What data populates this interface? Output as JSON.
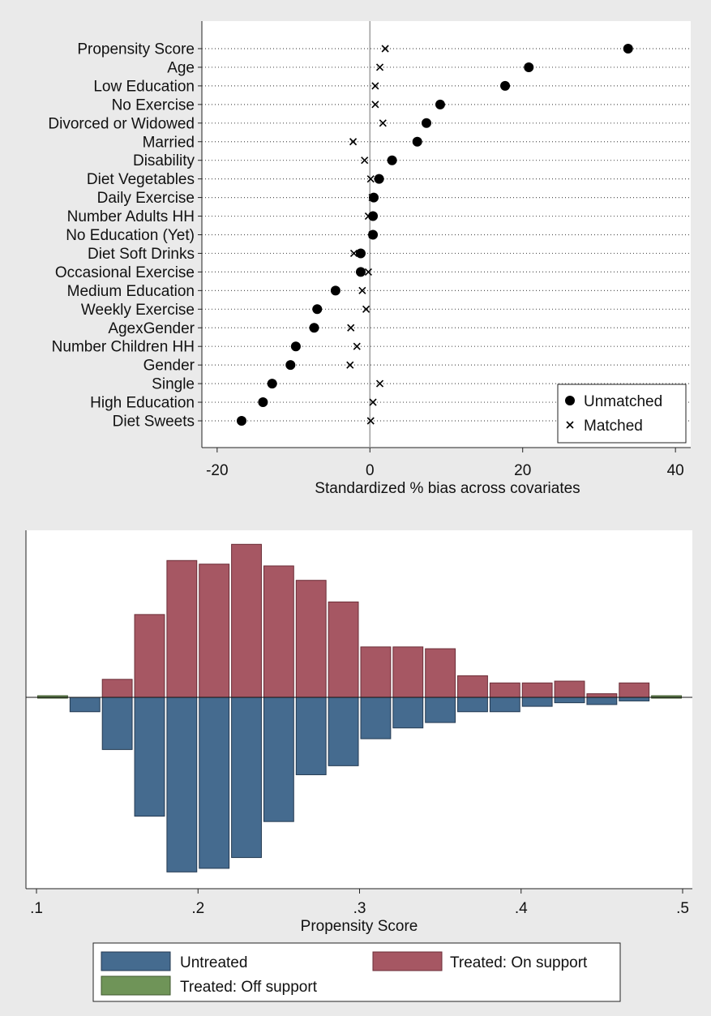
{
  "chart_data": [
    {
      "type": "scatter",
      "xlabel": "Standardized % bias across covariates",
      "ylabel": "",
      "xlim": [
        -22,
        42
      ],
      "xticks": [
        -20,
        0,
        20,
        40
      ],
      "grid": "dotted horizontal lines per covariate",
      "reference_line_x": 0,
      "legend_position": "bottom-right",
      "categories": [
        "Propensity Score",
        "Age",
        "Low Education",
        "No Exercise",
        "Divorced or Widowed",
        "Married",
        "Disability",
        "Diet Vegetables",
        "Daily Exercise",
        "Number Adults HH",
        "No Education (Yet)",
        "Diet Soft Drinks",
        "Occasional Exercise",
        "Medium Education",
        "Weekly Exercise",
        "AgexGender",
        "Number Children HH",
        "Gender",
        "Single",
        "High Education",
        "Diet Sweets"
      ],
      "series": [
        {
          "name": "Unmatched",
          "marker": "filled-circle",
          "color": "#000000",
          "values": [
            33.8,
            20.8,
            17.7,
            9.2,
            7.4,
            6.2,
            2.9,
            1.2,
            0.5,
            0.4,
            0.4,
            -1.2,
            -1.2,
            -4.5,
            -6.9,
            -7.3,
            -9.7,
            -10.4,
            -12.8,
            -14.0,
            -16.8
          ]
        },
        {
          "name": "Matched",
          "marker": "x-cross",
          "color": "#000000",
          "values": [
            2.0,
            1.3,
            0.7,
            0.7,
            1.7,
            -2.2,
            -0.7,
            0.1,
            0.3,
            -0.2,
            0.3,
            -2.1,
            -0.2,
            -1.0,
            -0.5,
            -2.5,
            -1.7,
            -2.6,
            1.3,
            0.4,
            0.1
          ]
        }
      ]
    },
    {
      "type": "bar",
      "subtype": "mirrored-histogram",
      "xlabel": "Propensity Score",
      "ylabel": "",
      "xlim": [
        0.1,
        0.5
      ],
      "xticks": [
        ".1",
        ".2",
        ".3",
        ".4",
        ".5"
      ],
      "tick_values": [
        0.1,
        0.2,
        0.3,
        0.4,
        0.5
      ],
      "bin_width": 0.02,
      "bin_centers": [
        0.11,
        0.13,
        0.15,
        0.17,
        0.19,
        0.21,
        0.23,
        0.25,
        0.27,
        0.29,
        0.31,
        0.33,
        0.35,
        0.37,
        0.39,
        0.41,
        0.43,
        0.45,
        0.47,
        0.49
      ],
      "legend_position": "bottom",
      "series": [
        {
          "name": "Untreated",
          "direction": "down",
          "color": "#456b8f",
          "values": [
            0,
            8,
            29,
            66,
            97,
            95,
            89,
            69,
            43,
            38,
            23,
            17,
            14,
            8,
            8,
            5,
            3,
            4,
            2,
            0
          ]
        },
        {
          "name": "Treated: On support",
          "direction": "up",
          "color": "#a65763",
          "values": [
            0,
            0,
            10,
            46,
            76,
            74,
            85,
            73,
            65,
            53,
            28,
            28,
            27,
            12,
            8,
            8,
            9,
            2,
            8,
            0
          ]
        },
        {
          "name": "Treated: Off support",
          "direction": "up",
          "color": "#6f9458",
          "values": [
            1,
            0,
            0,
            0,
            0,
            0,
            0,
            0,
            0,
            0,
            0,
            0,
            0,
            0,
            0,
            0,
            0,
            0,
            0,
            1
          ]
        }
      ]
    }
  ]
}
